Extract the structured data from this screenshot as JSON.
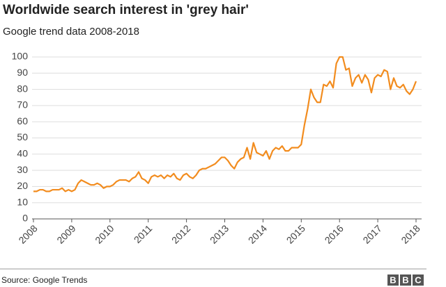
{
  "chart_data": {
    "type": "line",
    "title": "Worldwide search interest in 'grey hair'",
    "subtitle": "Google trend data 2008-2018",
    "source": "Source: Google Trends",
    "logo": [
      "B",
      "B",
      "C"
    ],
    "color": "#f28c1e",
    "grid": true,
    "xlim": [
      2008,
      2018
    ],
    "xticks": [
      2008,
      2009,
      2010,
      2011,
      2012,
      2013,
      2014,
      2015,
      2016,
      2017,
      2018
    ],
    "ylim": [
      0,
      100
    ],
    "yticks": [
      0,
      10,
      20,
      30,
      40,
      50,
      60,
      70,
      80,
      90,
      100
    ],
    "x": [
      2008,
      2008.083,
      2008.167,
      2008.25,
      2008.333,
      2008.417,
      2008.5,
      2008.583,
      2008.667,
      2008.75,
      2008.833,
      2008.917,
      2009,
      2009.083,
      2009.167,
      2009.25,
      2009.333,
      2009.417,
      2009.5,
      2009.583,
      2009.667,
      2009.75,
      2009.833,
      2009.917,
      2010,
      2010.083,
      2010.167,
      2010.25,
      2010.333,
      2010.417,
      2010.5,
      2010.583,
      2010.667,
      2010.75,
      2010.833,
      2010.917,
      2011,
      2011.083,
      2011.167,
      2011.25,
      2011.333,
      2011.417,
      2011.5,
      2011.583,
      2011.667,
      2011.75,
      2011.833,
      2011.917,
      2012,
      2012.083,
      2012.167,
      2012.25,
      2012.333,
      2012.417,
      2012.5,
      2012.583,
      2012.667,
      2012.75,
      2012.833,
      2012.917,
      2013,
      2013.083,
      2013.167,
      2013.25,
      2013.333,
      2013.417,
      2013.5,
      2013.583,
      2013.667,
      2013.75,
      2013.833,
      2013.917,
      2014,
      2014.083,
      2014.167,
      2014.25,
      2014.333,
      2014.417,
      2014.5,
      2014.583,
      2014.667,
      2014.75,
      2014.833,
      2014.917,
      2015,
      2015.083,
      2015.167,
      2015.25,
      2015.333,
      2015.417,
      2015.5,
      2015.583,
      2015.667,
      2015.75,
      2015.833,
      2015.917,
      2016,
      2016.083,
      2016.167,
      2016.25,
      2016.333,
      2016.417,
      2016.5,
      2016.583,
      2016.667,
      2016.75,
      2016.833,
      2016.917,
      2017,
      2017.083,
      2017.167,
      2017.25,
      2017.333,
      2017.417,
      2017.5,
      2017.583,
      2017.667,
      2017.75,
      2017.833,
      2017.917,
      2018
    ],
    "values": [
      17,
      17,
      18,
      18,
      17,
      17,
      18,
      18,
      18,
      19,
      17,
      18,
      17,
      18,
      22,
      24,
      23,
      22,
      21,
      21,
      22,
      21,
      19,
      20,
      20,
      21,
      23,
      24,
      24,
      24,
      23,
      25,
      26,
      29,
      25,
      24,
      22,
      26,
      27,
      26,
      27,
      25,
      27,
      26,
      28,
      25,
      24,
      27,
      28,
      26,
      25,
      27,
      30,
      31,
      31,
      32,
      33,
      34,
      36,
      38,
      38,
      36,
      33,
      31,
      35,
      37,
      38,
      44,
      37,
      47,
      41,
      40,
      39,
      42,
      37,
      42,
      44,
      43,
      45,
      42,
      42,
      44,
      44,
      44,
      46,
      58,
      68,
      80,
      75,
      72,
      72,
      83,
      82,
      85,
      81,
      96,
      100,
      100,
      92,
      93,
      82,
      87,
      89,
      84,
      89,
      86,
      78,
      87,
      89,
      88,
      92,
      91,
      80,
      87,
      82,
      81,
      83,
      79,
      77,
      80,
      85
    ]
  }
}
